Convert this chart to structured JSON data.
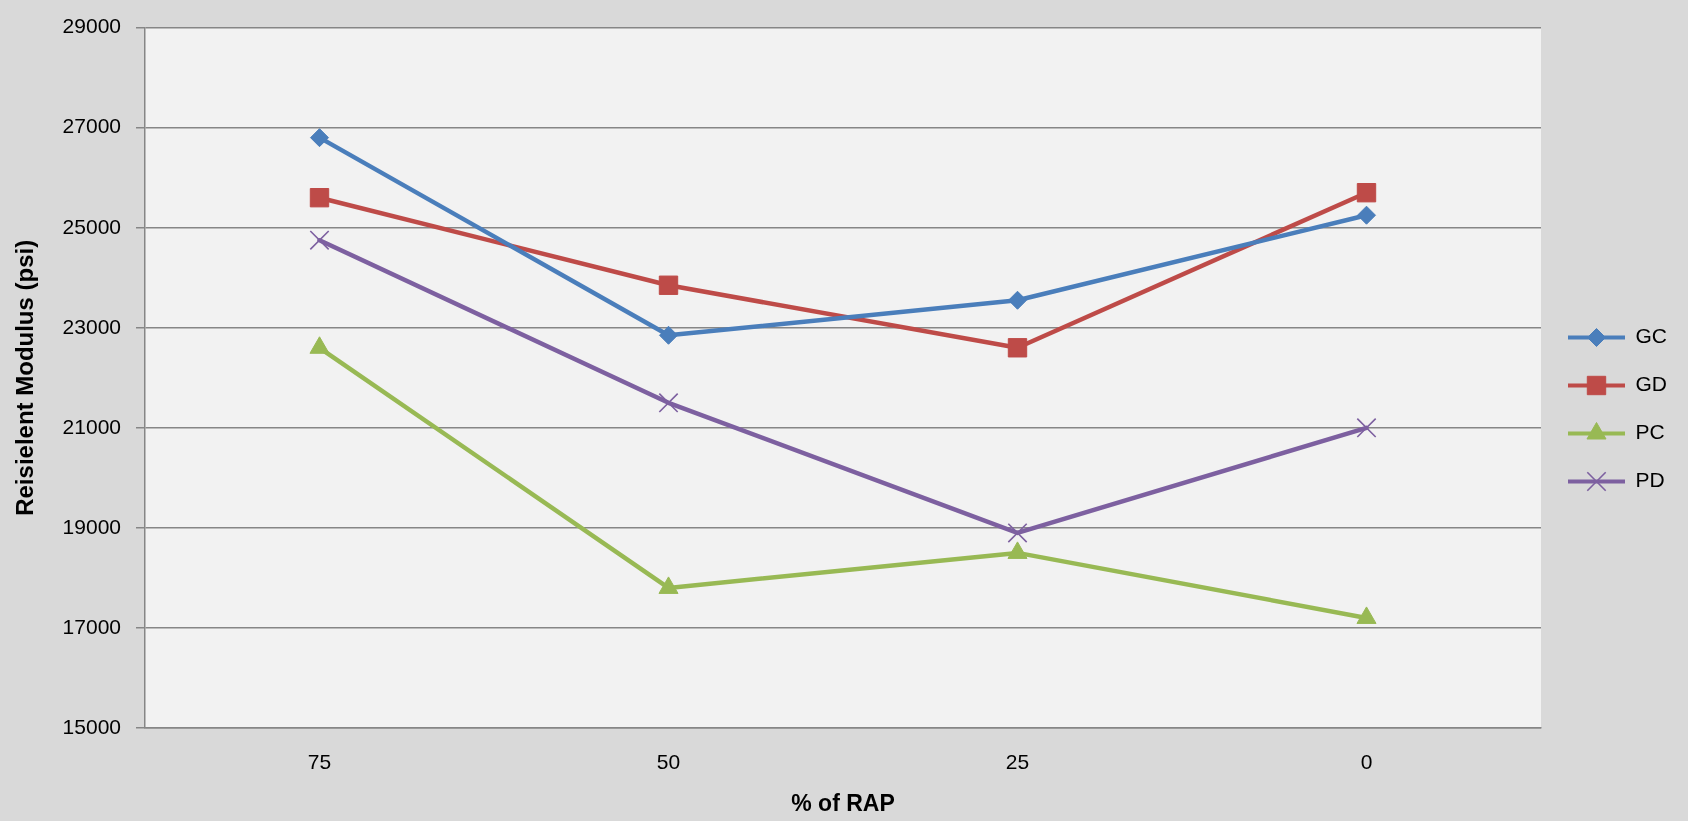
{
  "chart_data": {
    "type": "line",
    "xlabel": "% of RAP",
    "ylabel": "Reisielent Modulus (psi)",
    "categories": [
      "75",
      "50",
      "25",
      "0"
    ],
    "series": [
      {
        "name": "GC",
        "color": "#4a7ebb",
        "marker": "diamond",
        "values": [
          26800,
          22850,
          23550,
          25250
        ]
      },
      {
        "name": "GD",
        "color": "#be4b48",
        "marker": "square",
        "values": [
          25600,
          23850,
          22600,
          25700
        ]
      },
      {
        "name": "PC",
        "color": "#98b954",
        "marker": "triangle",
        "values": [
          22600,
          17800,
          18500,
          17200
        ]
      },
      {
        "name": "PD",
        "color": "#7d60a0",
        "marker": "cross",
        "values": [
          24750,
          21500,
          18900,
          21000
        ]
      }
    ],
    "ylim": [
      15000,
      29000
    ],
    "yticks": [
      15000,
      17000,
      19000,
      21000,
      23000,
      25000,
      27000,
      29000
    ],
    "grid": "y",
    "legend": "right",
    "line_style": "solid"
  }
}
